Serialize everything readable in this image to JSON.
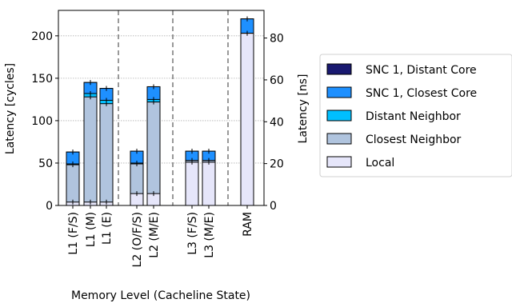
{
  "chart_data": {
    "type": "bar",
    "stacked": true,
    "categories": [
      "L1 (F/S)",
      "L1 (M)",
      "L1 (E)",
      "L2 (O/F/S)",
      "L2 (M/E)",
      "L3 (F/S)",
      "L3 (M/E)",
      "RAM"
    ],
    "groups": [
      {
        "categories": [
          "L1 (F/S)",
          "L1 (M)",
          "L1 (E)"
        ]
      },
      {
        "categories": [
          "L2 (O/F/S)",
          "L2 (M/E)"
        ]
      },
      {
        "categories": [
          "L3 (F/S)",
          "L3 (M/E)"
        ]
      },
      {
        "categories": [
          "RAM"
        ]
      }
    ],
    "series": [
      {
        "name": "Local",
        "color": "#e6e6fa",
        "values": [
          4,
          4,
          4,
          14,
          14,
          51,
          51,
          203
        ]
      },
      {
        "name": "Closest Neighbor",
        "color": "#b0c4de",
        "values": [
          48,
          128,
          120,
          49,
          122,
          53,
          53,
          203
        ]
      },
      {
        "name": "Distant Neighbor",
        "color": "#00bfff",
        "values": [
          49,
          132,
          124,
          50,
          125,
          53,
          53,
          203
        ]
      },
      {
        "name": "SNC 1, Closest Core",
        "color": "#1e90ff",
        "values": [
          63,
          145,
          138,
          64,
          140,
          64,
          64,
          220
        ]
      },
      {
        "name": "SNC 1, Distant Core",
        "color": "#191970",
        "values": [
          63,
          145,
          138,
          64,
          140,
          64,
          64,
          220
        ]
      }
    ],
    "xlabel": "Memory Level (Cacheline State)",
    "ylabel": "Latency [cycles]",
    "ylabel_right": "Latency [ns]",
    "ylim": [
      0,
      230
    ],
    "yticks": [
      "0",
      "50",
      "100",
      "150",
      "200"
    ],
    "ylim_right": [
      0,
      93.2
    ],
    "yticks_right": [
      "0",
      "20",
      "40",
      "60",
      "80"
    ],
    "grid": true,
    "legend_position": "right"
  }
}
